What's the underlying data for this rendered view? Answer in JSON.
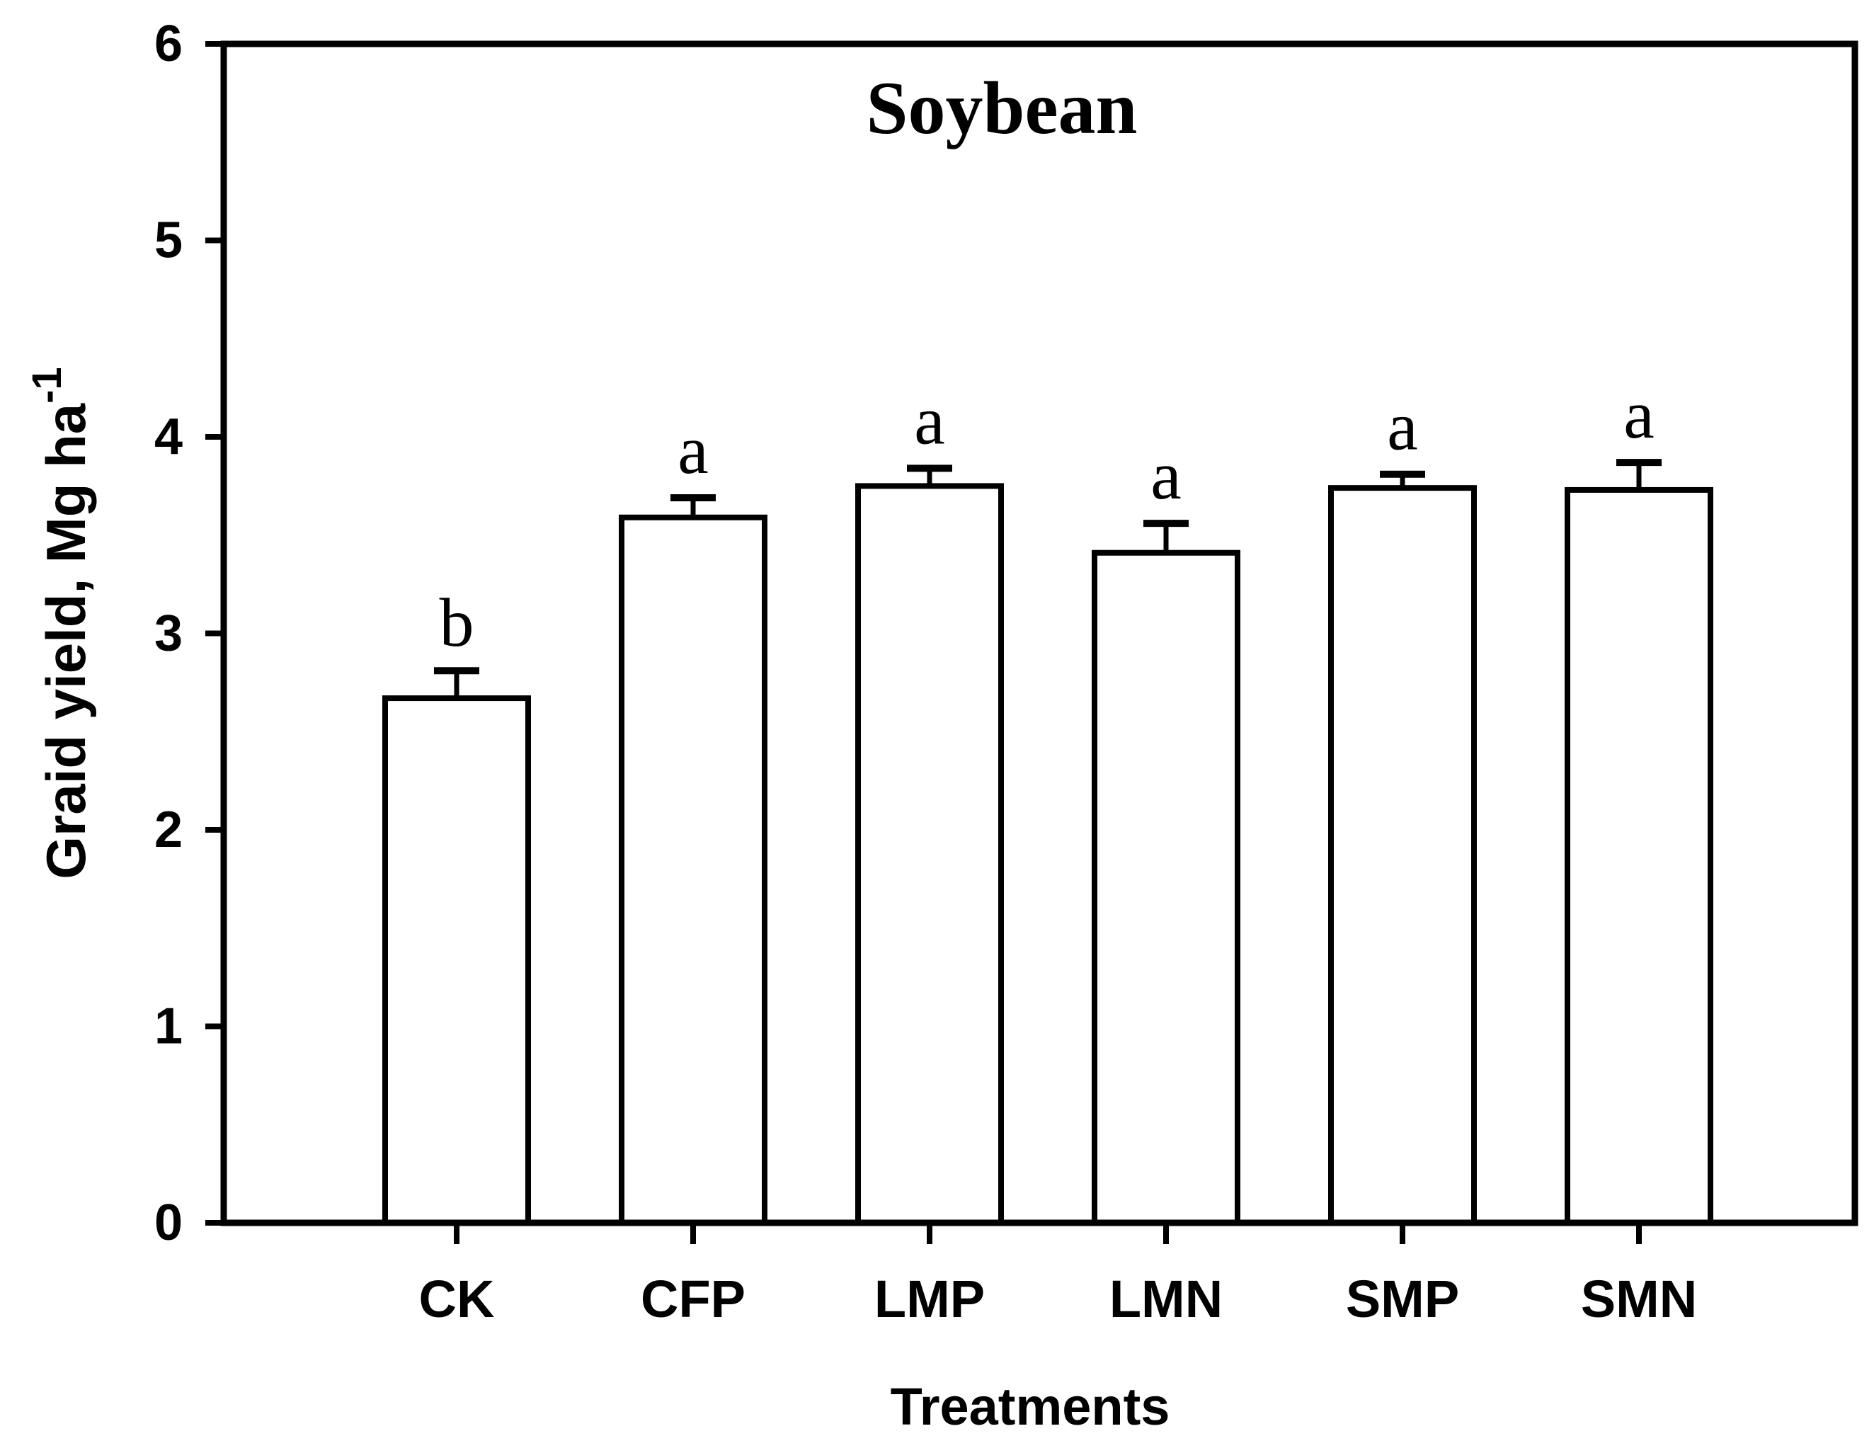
{
  "figure": {
    "background": "#ffffff",
    "ink_color": "#000000"
  },
  "chart_data": {
    "type": "bar",
    "title": "Soybean",
    "xlabel": "Treatments",
    "ylabel_main": "Graid yield, Mg ha",
    "ylabel_sup": "-1",
    "categories": [
      "CK",
      "CFP",
      "LMP",
      "LMN",
      "SMP",
      "SMN"
    ],
    "values": [
      2.67,
      3.59,
      3.75,
      3.41,
      3.74,
      3.73
    ],
    "errors_plus": [
      0.14,
      0.1,
      0.09,
      0.15,
      0.07,
      0.14
    ],
    "sig_letters": [
      "b",
      "a",
      "a",
      "a",
      "a",
      "a"
    ],
    "ylim": [
      0,
      6
    ],
    "yticks": [
      0,
      1,
      2,
      3,
      4,
      5,
      6
    ],
    "grid": false,
    "legend": "none",
    "bar_fill": "#ffffff",
    "bar_stroke": "#000000"
  }
}
